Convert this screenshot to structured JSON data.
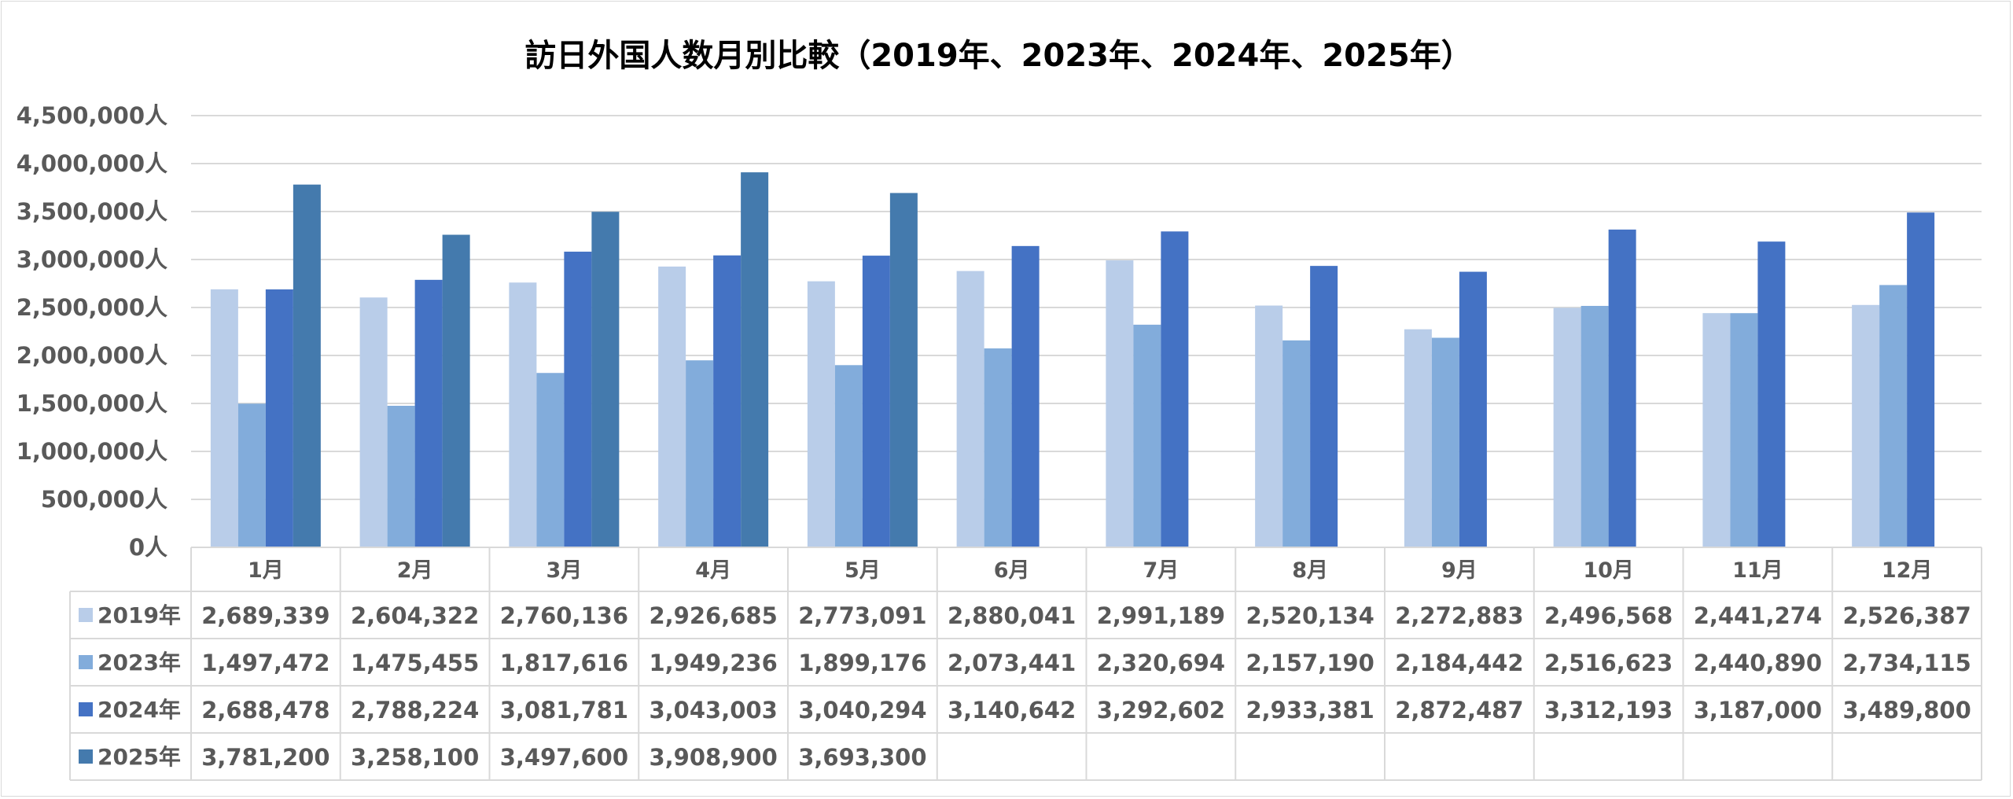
{
  "chart_data": {
    "type": "bar",
    "title": "訪日外国人数月別比較（2019年、2023年、2024年、2025年）",
    "xlabel": "",
    "ylabel": "",
    "ylim": [
      0,
      4500000
    ],
    "grid": true,
    "legend": "table-left",
    "y_tick_labels": [
      "0人",
      "500,000人",
      "1,000,000人",
      "1,500,000人",
      "2,000,000人",
      "2,500,000人",
      "3,000,000人",
      "3,500,000人",
      "4,000,000人",
      "4,500,000人"
    ],
    "y_tick_values": [
      0,
      500000,
      1000000,
      1500000,
      2000000,
      2500000,
      3000000,
      3500000,
      4000000,
      4500000
    ],
    "categories": [
      "1月",
      "2月",
      "3月",
      "4月",
      "5月",
      "6月",
      "7月",
      "8月",
      "9月",
      "10月",
      "11月",
      "12月"
    ],
    "series": [
      {
        "name": "2019年",
        "color": "#b9cde9",
        "values": [
          2689339,
          2604322,
          2760136,
          2926685,
          2773091,
          2880041,
          2991189,
          2520134,
          2272883,
          2496568,
          2441274,
          2526387
        ],
        "labels": [
          "2,689,339",
          "2,604,322",
          "2,760,136",
          "2,926,685",
          "2,773,091",
          "2,880,041",
          "2,991,189",
          "2,520,134",
          "2,272,883",
          "2,496,568",
          "2,441,274",
          "2,526,387"
        ]
      },
      {
        "name": "2023年",
        "color": "#82acdb",
        "values": [
          1497472,
          1475455,
          1817616,
          1949236,
          1899176,
          2073441,
          2320694,
          2157190,
          2184442,
          2516623,
          2440890,
          2734115
        ],
        "labels": [
          "1,497,472",
          "1,475,455",
          "1,817,616",
          "1,949,236",
          "1,899,176",
          "2,073,441",
          "2,320,694",
          "2,157,190",
          "2,184,442",
          "2,516,623",
          "2,440,890",
          "2,734,115"
        ]
      },
      {
        "name": "2024年",
        "color": "#4472c4",
        "values": [
          2688478,
          2788224,
          3081781,
          3043003,
          3040294,
          3140642,
          3292602,
          2933381,
          2872487,
          3312193,
          3187000,
          3489800
        ],
        "labels": [
          "2,688,478",
          "2,788,224",
          "3,081,781",
          "3,043,003",
          "3,040,294",
          "3,140,642",
          "3,292,602",
          "2,933,381",
          "2,872,487",
          "3,312,193",
          "3,187,000",
          "3,489,800"
        ]
      },
      {
        "name": "2025年",
        "color": "#447aad",
        "values": [
          3781200,
          3258100,
          3497600,
          3908900,
          3693300,
          null,
          null,
          null,
          null,
          null,
          null,
          null
        ],
        "labels": [
          "3,781,200",
          "3,258,100",
          "3,497,600",
          "3,908,900",
          "3,693,300",
          "",
          "",
          "",
          "",
          "",
          "",
          ""
        ]
      }
    ]
  }
}
